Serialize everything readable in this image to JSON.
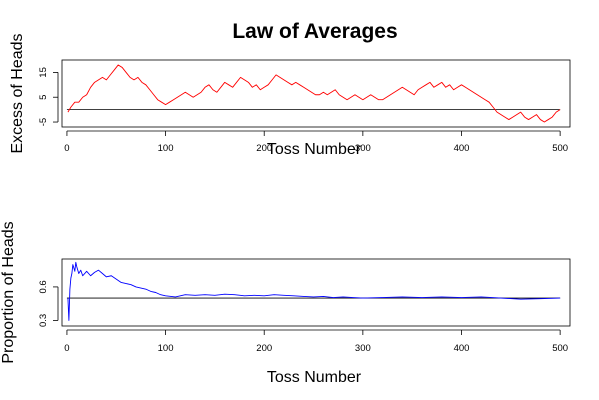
{
  "title": "Law of Averages",
  "chart_data": [
    {
      "type": "line",
      "name": "excess-of-heads",
      "xlabel": "Toss Number",
      "ylabel": "Excess of Heads",
      "xlim": [
        -5,
        510
      ],
      "ylim": [
        -7,
        20
      ],
      "xticks": [
        0,
        100,
        200,
        300,
        400,
        500
      ],
      "yticks": [
        -5,
        5,
        15
      ],
      "reference_y": 0,
      "color": "#ff0000",
      "x": [
        1,
        4,
        8,
        12,
        16,
        20,
        24,
        28,
        32,
        36,
        40,
        44,
        48,
        52,
        56,
        60,
        64,
        68,
        72,
        76,
        80,
        84,
        88,
        92,
        96,
        100,
        104,
        108,
        112,
        116,
        120,
        124,
        128,
        132,
        136,
        140,
        144,
        148,
        152,
        156,
        160,
        164,
        168,
        172,
        176,
        180,
        184,
        188,
        192,
        196,
        200,
        204,
        208,
        212,
        216,
        220,
        224,
        228,
        232,
        236,
        240,
        244,
        248,
        252,
        256,
        260,
        264,
        268,
        272,
        276,
        280,
        284,
        288,
        292,
        296,
        300,
        304,
        308,
        312,
        316,
        320,
        324,
        328,
        332,
        336,
        340,
        344,
        348,
        352,
        356,
        360,
        364,
        368,
        372,
        376,
        380,
        384,
        388,
        392,
        396,
        400,
        404,
        408,
        412,
        416,
        420,
        424,
        428,
        432,
        436,
        440,
        444,
        448,
        452,
        456,
        460,
        464,
        468,
        472,
        476,
        480,
        484,
        488,
        492,
        496,
        500
      ],
      "y": [
        -1,
        1,
        3,
        3,
        5,
        6,
        9,
        11,
        12,
        13,
        12,
        14,
        16,
        18,
        17,
        15,
        13,
        12,
        13,
        11,
        10,
        8,
        6,
        4,
        3,
        2,
        3,
        4,
        5,
        6,
        7,
        6,
        5,
        6,
        7,
        9,
        10,
        8,
        7,
        9,
        11,
        10,
        9,
        11,
        13,
        12,
        11,
        9,
        10,
        8,
        9,
        10,
        12,
        14,
        13,
        12,
        11,
        10,
        11,
        10,
        9,
        8,
        7,
        6,
        6,
        7,
        6,
        7,
        8,
        6,
        5,
        4,
        5,
        6,
        5,
        4,
        5,
        6,
        5,
        4,
        4,
        5,
        6,
        7,
        8,
        9,
        8,
        7,
        6,
        8,
        9,
        10,
        11,
        9,
        10,
        11,
        9,
        10,
        8,
        9,
        10,
        9,
        8,
        7,
        6,
        5,
        4,
        3,
        1,
        -1,
        -2,
        -3,
        -4,
        -3,
        -2,
        -1,
        -3,
        -4,
        -3,
        -2,
        -4,
        -5,
        -4,
        -3,
        -1,
        0
      ]
    },
    {
      "type": "line",
      "name": "proportion-of-heads",
      "xlabel": "Toss Number",
      "ylabel": "Proportion of Heads",
      "xlim": [
        -5,
        510
      ],
      "ylim": [
        0.25,
        0.85
      ],
      "xticks": [
        0,
        100,
        200,
        300,
        400,
        500
      ],
      "yticks": [
        0.3,
        0.6
      ],
      "reference_y": 0.5,
      "color": "#0000ff",
      "x": [
        1,
        2,
        3,
        4,
        5,
        6,
        7,
        8,
        9,
        10,
        12,
        14,
        16,
        18,
        20,
        24,
        28,
        32,
        36,
        40,
        45,
        50,
        55,
        60,
        65,
        70,
        75,
        80,
        85,
        90,
        95,
        100,
        110,
        120,
        130,
        140,
        150,
        160,
        170,
        180,
        190,
        200,
        210,
        220,
        230,
        240,
        250,
        260,
        270,
        280,
        290,
        300,
        320,
        340,
        360,
        380,
        400,
        420,
        440,
        460,
        480,
        500
      ],
      "y": [
        0.5,
        0.3,
        0.58,
        0.68,
        0.72,
        0.8,
        0.77,
        0.74,
        0.82,
        0.78,
        0.72,
        0.75,
        0.7,
        0.72,
        0.74,
        0.7,
        0.73,
        0.75,
        0.72,
        0.69,
        0.7,
        0.67,
        0.64,
        0.63,
        0.62,
        0.6,
        0.59,
        0.58,
        0.56,
        0.55,
        0.53,
        0.52,
        0.51,
        0.53,
        0.525,
        0.53,
        0.525,
        0.535,
        0.53,
        0.52,
        0.525,
        0.52,
        0.53,
        0.525,
        0.52,
        0.515,
        0.51,
        0.515,
        0.505,
        0.51,
        0.505,
        0.5,
        0.505,
        0.51,
        0.505,
        0.51,
        0.505,
        0.51,
        0.5,
        0.49,
        0.495,
        0.5
      ]
    }
  ]
}
